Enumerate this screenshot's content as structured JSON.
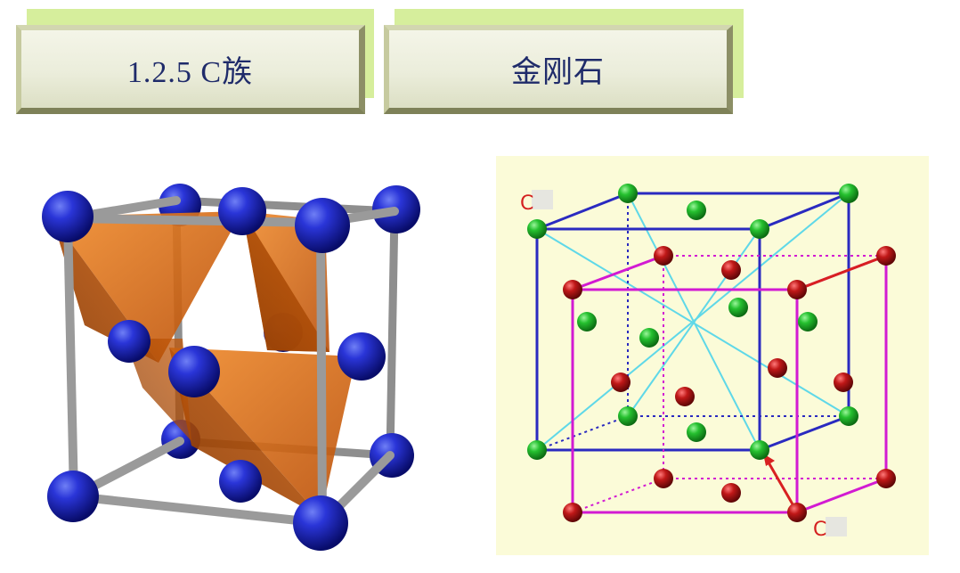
{
  "header_left": {
    "title": "1.2.5 C族"
  },
  "header_right": {
    "title": "金刚石"
  },
  "diagram_right": {
    "label_top": "C",
    "label_bottom": "C"
  },
  "colors": {
    "blue_atom": "#1822b8",
    "tetra_orange": "#e0680a",
    "green_atom": "#1fb82e",
    "red_atom": "#b81414",
    "cube_blue": "#2a2ac0",
    "cube_magenta": "#d21ad2",
    "diag_cyan": "#5fd8e8",
    "panel_bg": "#fbfbd8"
  }
}
